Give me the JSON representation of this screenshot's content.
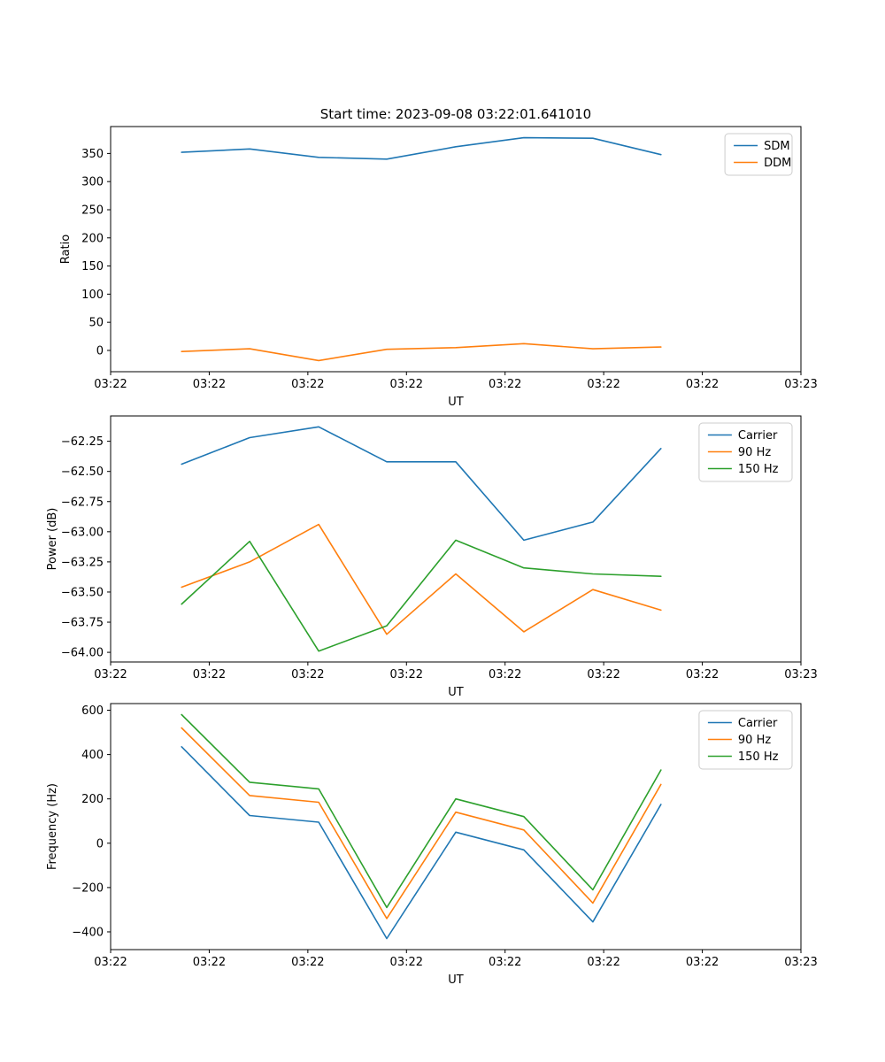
{
  "figure_title": "Start time: 2023-09-08 03:22:01.641010",
  "colors": {
    "blue": "#1f77b4",
    "orange": "#ff7f0e",
    "green": "#2ca02c"
  },
  "chart_data": [
    {
      "name": "ratio",
      "type": "line",
      "xlabel": "UT",
      "ylabel": "Ratio",
      "xlim": [
        0,
        7
      ],
      "ylim": [
        -37.8,
        397.8
      ],
      "xtick_values": [
        0,
        1,
        2,
        3,
        4,
        5,
        6,
        7
      ],
      "xtick_labels": [
        "03:22",
        "03:22",
        "03:22",
        "03:22",
        "03:22",
        "03:22",
        "03:22",
        "03:23"
      ],
      "ytick_values": [
        0,
        50,
        100,
        150,
        200,
        250,
        300,
        350
      ],
      "ytick_labels": [
        "0",
        "50",
        "100",
        "150",
        "200",
        "250",
        "300",
        "350"
      ],
      "x": [
        0.72,
        1.41,
        2.11,
        2.8,
        3.5,
        4.19,
        4.89,
        5.58
      ],
      "series": [
        {
          "name": "SDM",
          "color": "#1f77b4",
          "values": [
            352,
            358,
            343,
            340,
            362,
            378,
            377,
            348
          ]
        },
        {
          "name": "DDM",
          "color": "#ff7f0e",
          "values": [
            -2,
            3,
            -18,
            2,
            5,
            12,
            3,
            6
          ]
        }
      ],
      "legend_position": "upper right",
      "grid": false
    },
    {
      "name": "power",
      "type": "line",
      "xlabel": "UT",
      "ylabel": "Power (dB)",
      "xlim": [
        0,
        7
      ],
      "ylim": [
        -64.08,
        -62.04
      ],
      "xtick_values": [
        0,
        1,
        2,
        3,
        4,
        5,
        6,
        7
      ],
      "xtick_labels": [
        "03:22",
        "03:22",
        "03:22",
        "03:22",
        "03:22",
        "03:22",
        "03:22",
        "03:23"
      ],
      "ytick_values": [
        -64.0,
        -63.75,
        -63.5,
        -63.25,
        -63.0,
        -62.75,
        -62.5,
        -62.25
      ],
      "ytick_labels": [
        "−64.00",
        "−63.75",
        "−63.50",
        "−63.25",
        "−63.00",
        "−62.75",
        "−62.50",
        "−62.25"
      ],
      "x": [
        0.72,
        1.41,
        2.11,
        2.8,
        3.5,
        4.19,
        4.89,
        5.58
      ],
      "series": [
        {
          "name": "Carrier",
          "color": "#1f77b4",
          "values": [
            -62.44,
            -62.22,
            -62.13,
            -62.42,
            -62.42,
            -63.07,
            -62.92,
            -62.31
          ]
        },
        {
          "name": "90 Hz",
          "color": "#ff7f0e",
          "values": [
            -63.46,
            -63.25,
            -62.94,
            -63.85,
            -63.35,
            -63.83,
            -63.48,
            -63.65
          ]
        },
        {
          "name": "150 Hz",
          "color": "#2ca02c",
          "values": [
            -63.6,
            -63.08,
            -63.99,
            -63.78,
            -63.07,
            -63.3,
            -63.35,
            -63.37
          ]
        }
      ],
      "legend_position": "upper right",
      "grid": false
    },
    {
      "name": "frequency",
      "type": "line",
      "xlabel": "UT",
      "ylabel": "Frequency (Hz)",
      "xlim": [
        0,
        7
      ],
      "ylim": [
        -480,
        630
      ],
      "xtick_values": [
        0,
        1,
        2,
        3,
        4,
        5,
        6,
        7
      ],
      "xtick_labels": [
        "03:22",
        "03:22",
        "03:22",
        "03:22",
        "03:22",
        "03:22",
        "03:22",
        "03:23"
      ],
      "ytick_values": [
        -400,
        -200,
        0,
        200,
        400,
        600
      ],
      "ytick_labels": [
        "−400",
        "−200",
        "0",
        "200",
        "400",
        "600"
      ],
      "x": [
        0.72,
        1.41,
        2.11,
        2.8,
        3.5,
        4.19,
        4.89,
        5.58
      ],
      "series": [
        {
          "name": "Carrier",
          "color": "#1f77b4",
          "values": [
            435,
            125,
            95,
            -430,
            50,
            -30,
            -355,
            175
          ]
        },
        {
          "name": "90 Hz",
          "color": "#ff7f0e",
          "values": [
            520,
            215,
            185,
            -340,
            140,
            60,
            -270,
            265
          ]
        },
        {
          "name": "150 Hz",
          "color": "#2ca02c",
          "values": [
            580,
            275,
            245,
            -290,
            200,
            120,
            -210,
            330
          ]
        }
      ],
      "legend_position": "upper right",
      "grid": false
    }
  ]
}
